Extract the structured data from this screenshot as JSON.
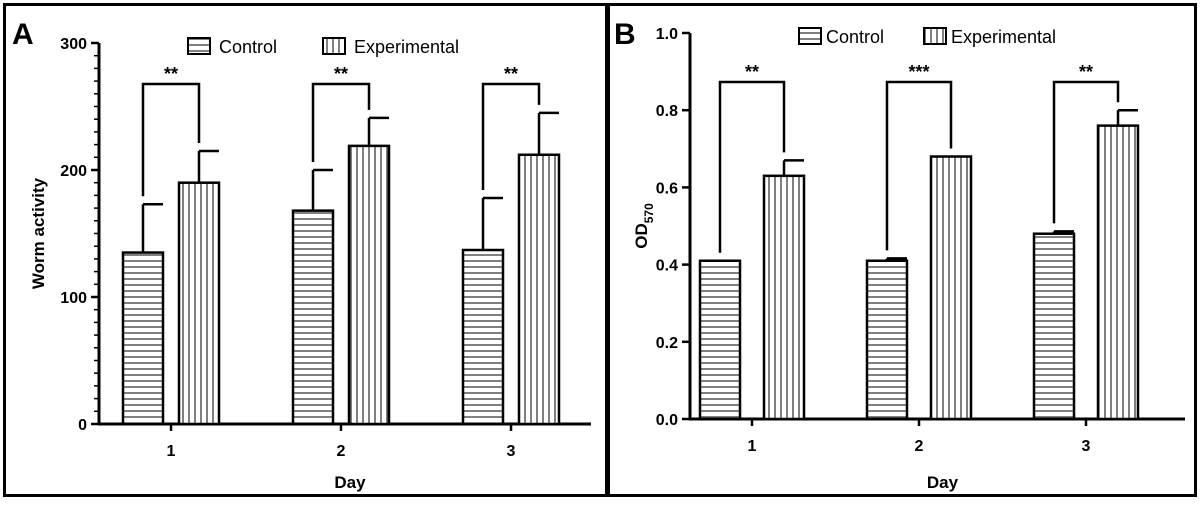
{
  "chart_data": [
    {
      "panel_label": "A",
      "type": "bar",
      "xlabel": "Day",
      "ylabel": "Worm activity",
      "ylim": [
        0,
        300
      ],
      "yticks": [
        0,
        100,
        200,
        300
      ],
      "ytick_labels": [
        "0",
        "100",
        "200",
        "300"
      ],
      "categories": [
        "1",
        "2",
        "3"
      ],
      "series": [
        {
          "name": "Control",
          "pattern": "horizontal-lines",
          "values": [
            135,
            168,
            137
          ],
          "errors": [
            38,
            32,
            41
          ]
        },
        {
          "name": "Experimental",
          "pattern": "vertical-lines",
          "values": [
            190,
            219,
            212
          ],
          "errors": [
            25,
            22,
            33
          ]
        }
      ],
      "significance": [
        "**",
        "**",
        "**"
      ],
      "legend_position": "top"
    },
    {
      "panel_label": "B",
      "type": "bar",
      "xlabel": "Day",
      "ylabel": "OD",
      "ylabel_subscript": "570",
      "ylim": [
        0,
        1.0
      ],
      "yticks": [
        0,
        0.2,
        0.4,
        0.6,
        0.8,
        1.0
      ],
      "ytick_labels": [
        "0.0",
        "0.2",
        "0.4",
        "0.6",
        "0.8",
        "1.0"
      ],
      "categories": [
        "1",
        "2",
        "3"
      ],
      "series": [
        {
          "name": "Control",
          "pattern": "horizontal-lines",
          "values": [
            0.41,
            0.41,
            0.48
          ],
          "errors": [
            0,
            0.006,
            0.006
          ]
        },
        {
          "name": "Experimental",
          "pattern": "vertical-lines",
          "values": [
            0.63,
            0.68,
            0.76
          ],
          "errors": [
            0.04,
            0,
            0.04
          ]
        }
      ],
      "significance": [
        "**",
        "***",
        "**"
      ],
      "legend_position": "top"
    }
  ]
}
